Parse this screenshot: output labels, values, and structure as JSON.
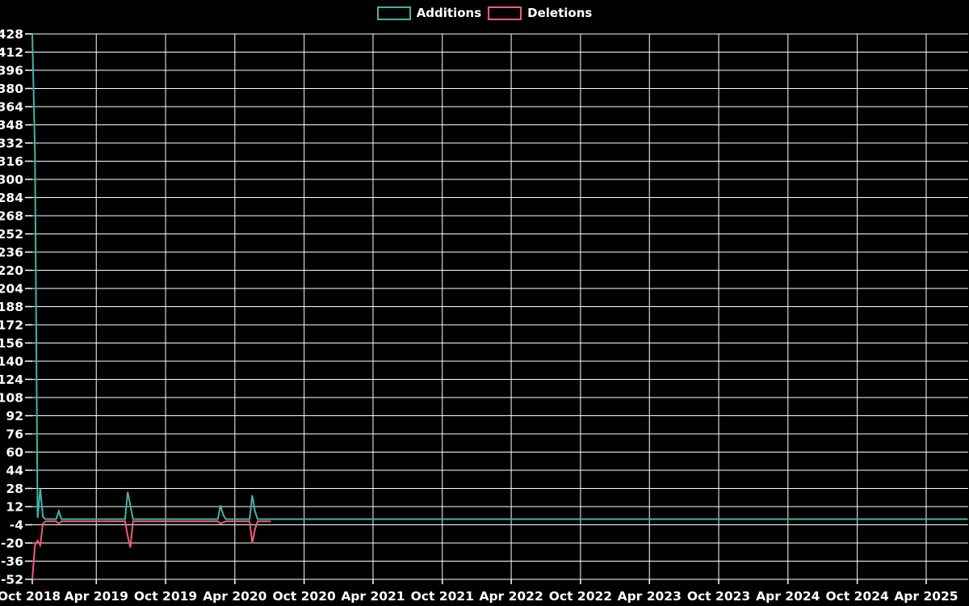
{
  "legend": {
    "additions_label": "Additions",
    "deletions_label": "Deletions"
  },
  "colors": {
    "background": "#000000",
    "grid": "#ffffff",
    "text": "#ffffff",
    "additions": "#43b3aa",
    "deletions": "#f15b7a"
  },
  "chart_data": {
    "type": "line",
    "title": "",
    "legend_position": "top-center",
    "grid": true,
    "y_axis": {
      "min": -52,
      "max": 428,
      "step": 16,
      "tick_labels": [
        "428",
        "412",
        "396",
        "380",
        "364",
        "348",
        "332",
        "316",
        "300",
        "284",
        "268",
        "252",
        "236",
        "220",
        "204",
        "188",
        "172",
        "156",
        "140",
        "124",
        "108",
        "92",
        "76",
        "60",
        "44",
        "28",
        "12",
        "-4",
        "-20",
        "-36",
        "-52"
      ]
    },
    "x_axis": {
      "start": "2018-10-14",
      "end": "2025-07-21",
      "ticks": [
        {
          "label": "Oct 2018",
          "date": "2018-10-01"
        },
        {
          "label": "Apr 2019",
          "date": "2019-04-01"
        },
        {
          "label": "Oct 2019",
          "date": "2019-10-01"
        },
        {
          "label": "Apr 2020",
          "date": "2020-04-01"
        },
        {
          "label": "Oct 2020",
          "date": "2020-10-01"
        },
        {
          "label": "Apr 2021",
          "date": "2021-04-01"
        },
        {
          "label": "Oct 2021",
          "date": "2021-10-01"
        },
        {
          "label": "Apr 2022",
          "date": "2022-04-01"
        },
        {
          "label": "Oct 2022",
          "date": "2022-10-01"
        },
        {
          "label": "Apr 2023",
          "date": "2023-04-01"
        },
        {
          "label": "Oct 2023",
          "date": "2023-10-01"
        },
        {
          "label": "Apr 2024",
          "date": "2024-04-01"
        },
        {
          "label": "Oct 2024",
          "date": "2024-10-01"
        },
        {
          "label": "Apr 2025",
          "date": "2025-04-01"
        }
      ]
    },
    "series": [
      {
        "name": "Additions",
        "color": "#43b3aa",
        "interval": "weekly",
        "start": "2018-10-14",
        "end": "2025-07-20",
        "baseline": 1,
        "points": {
          "2018-10-14": 428,
          "2018-10-21": 324,
          "2018-10-28": 2,
          "2018-11-04": 28,
          "2018-11-11": 3,
          "2018-12-23": 8,
          "2019-06-23": 25,
          "2019-06-30": 13,
          "2020-02-23": 13,
          "2020-03-01": 5,
          "2020-05-17": 22,
          "2020-05-24": 8
        }
      },
      {
        "name": "Deletions",
        "color": "#f15b7a",
        "interval": "weekly",
        "start": "2018-10-14",
        "end": "2020-07-05",
        "baseline": -1,
        "points": {
          "2018-10-14": -52,
          "2018-10-21": -22,
          "2018-10-28": -18,
          "2018-11-04": -22,
          "2018-11-11": -3,
          "2018-12-23": -3,
          "2019-06-23": -14,
          "2019-06-30": -24,
          "2020-02-23": -3,
          "2020-03-01": -2,
          "2020-05-17": -20,
          "2020-05-24": -8
        }
      }
    ]
  }
}
